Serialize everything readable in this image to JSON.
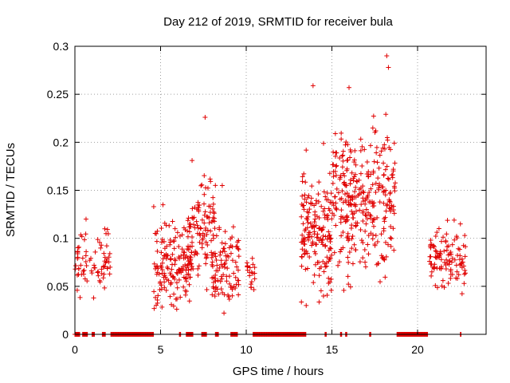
{
  "chart_data": {
    "type": "scatter",
    "title": "Day 212 of 2019, SRMTID for receiver bula",
    "xlabel": "GPS time / hours",
    "ylabel": "SRMTID / TECUs",
    "xlim": [
      0,
      24
    ],
    "ylim": [
      0,
      0.3
    ],
    "xticks": [
      0,
      5,
      10,
      15,
      20
    ],
    "xtick_labels": [
      "0",
      "5",
      "10",
      "15",
      "20"
    ],
    "yticks": [
      0,
      0.05,
      0.1,
      0.15,
      0.2,
      0.25,
      0.3
    ],
    "ytick_labels": [
      "0",
      "0.05",
      "0.1",
      "0.15",
      "0.2",
      "0.25",
      "0.3"
    ],
    "grid": true,
    "marker": "+",
    "series_color": "#e00000",
    "series": [
      {
        "name": "SRMTID",
        "clusters": [
          {
            "x_range": [
              0.0,
              2.1
            ],
            "y_mean": 0.078,
            "y_spread": 0.022,
            "count": 75
          },
          {
            "x_range": [
              4.6,
              6.8
            ],
            "y_mean": 0.075,
            "y_spread": 0.028,
            "count": 160
          },
          {
            "x_range": [
              6.6,
              8.2
            ],
            "y_mean": 0.11,
            "y_spread": 0.035,
            "count": 110
          },
          {
            "x_range": [
              8.0,
              9.6
            ],
            "y_mean": 0.07,
            "y_spread": 0.025,
            "count": 90
          },
          {
            "x_range": [
              10.0,
              10.5
            ],
            "y_mean": 0.065,
            "y_spread": 0.012,
            "count": 20
          },
          {
            "x_range": [
              13.2,
              15.0
            ],
            "y_mean": 0.11,
            "y_spread": 0.04,
            "count": 170
          },
          {
            "x_range": [
              15.0,
              18.7
            ],
            "y_mean": 0.14,
            "y_spread": 0.045,
            "count": 320
          },
          {
            "x_range": [
              20.7,
              22.8
            ],
            "y_mean": 0.078,
            "y_spread": 0.018,
            "count": 110
          }
        ],
        "notable_points": [
          {
            "x": 7.6,
            "y": 0.226
          },
          {
            "x": 13.9,
            "y": 0.259
          },
          {
            "x": 16.0,
            "y": 0.257
          },
          {
            "x": 18.2,
            "y": 0.29
          },
          {
            "x": 18.3,
            "y": 0.278
          },
          {
            "x": 0.65,
            "y": 0.12
          },
          {
            "x": 4.6,
            "y": 0.133
          },
          {
            "x": 8.6,
            "y": 0.155
          },
          {
            "x": 13.5,
            "y": 0.03
          },
          {
            "x": 22.5,
            "y": 0.115
          }
        ],
        "zero_segments": [
          [
            0.0,
            0.3
          ],
          [
            0.45,
            0.75
          ],
          [
            1.0,
            1.15
          ],
          [
            1.6,
            1.8
          ],
          [
            2.1,
            4.6
          ],
          [
            6.1,
            6.2
          ],
          [
            6.5,
            6.9
          ],
          [
            7.4,
            7.7
          ],
          [
            8.2,
            8.4
          ],
          [
            9.1,
            9.5
          ],
          [
            10.4,
            13.5
          ],
          [
            14.6,
            14.7
          ],
          [
            15.5,
            15.6
          ],
          [
            15.8,
            15.9
          ],
          [
            17.2,
            17.3
          ],
          [
            18.8,
            20.6
          ],
          [
            22.5,
            22.55
          ]
        ]
      }
    ]
  }
}
